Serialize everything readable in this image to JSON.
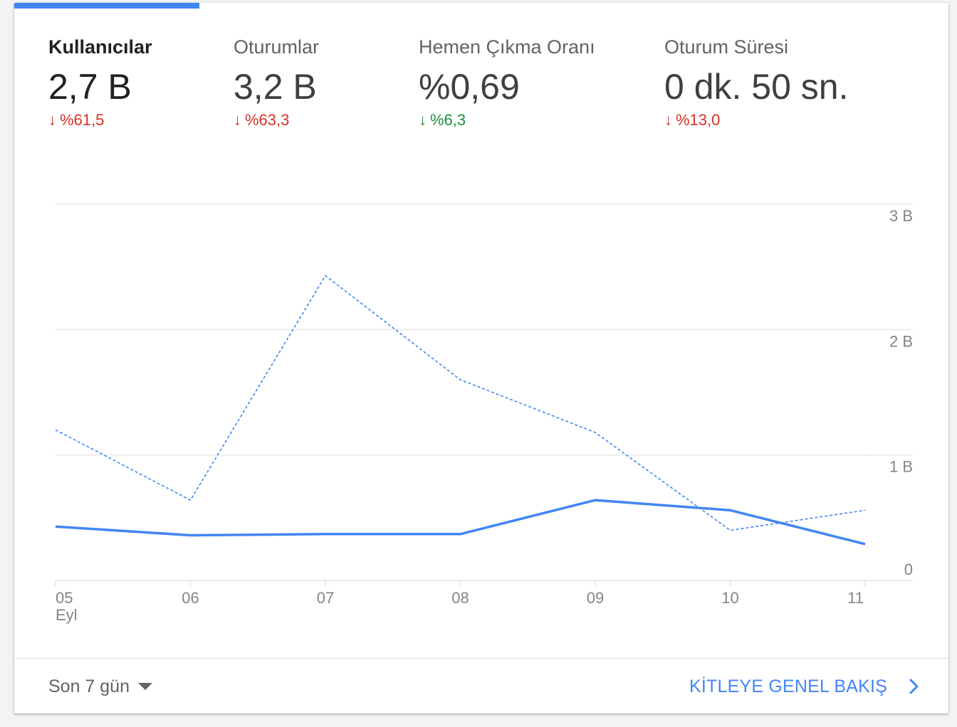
{
  "metrics": [
    {
      "label": "Kullanıcılar",
      "value": "2,7 B",
      "change": "%61,5",
      "direction": "down",
      "color": "#d93025",
      "active": true
    },
    {
      "label": "Oturumlar",
      "value": "3,2 B",
      "change": "%63,3",
      "direction": "down",
      "color": "#d93025",
      "active": false
    },
    {
      "label": "Hemen Çıkma Oranı",
      "value": "%0,69",
      "change": "%6,3",
      "direction": "down",
      "color": "#1e8e3e",
      "active": false
    },
    {
      "label": "Oturum Süresi",
      "value": "0 dk. 50 sn.",
      "change": "%13,0",
      "direction": "down",
      "color": "#d93025",
      "active": false
    }
  ],
  "arrow_glyph": "↓",
  "chart_data": {
    "type": "line",
    "categories": [
      "05",
      "06",
      "07",
      "08",
      "09",
      "10",
      "11"
    ],
    "first_category_sublabel": "Eyl",
    "series": [
      {
        "style": "solid",
        "color": "#4285f4",
        "values": [
          430,
          360,
          370,
          370,
          640,
          560,
          290
        ]
      },
      {
        "style": "dashed",
        "color": "#4285f4",
        "values": [
          1200,
          640,
          2430,
          1600,
          1180,
          400,
          560
        ]
      }
    ],
    "ylim": [
      0,
      3000
    ],
    "yticks": [
      0,
      1000,
      2000,
      3000
    ],
    "ytick_labels": [
      "0",
      "1 B",
      "2 B",
      "3 B"
    ],
    "y_axis_position": "right",
    "grid": true
  },
  "footer": {
    "range_label": "Son 7 gün",
    "overview_label": "KİTLEYE GENEL BAKIŞ"
  },
  "colors": {
    "accent": "#4285f4",
    "negative": "#d93025",
    "positive": "#1e8e3e",
    "grid": "#e0e0e0"
  }
}
